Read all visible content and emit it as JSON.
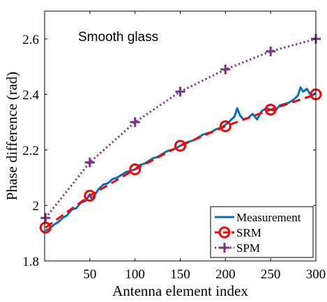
{
  "chart_data": {
    "type": "line",
    "annotation": "Smooth glass",
    "title": "",
    "xlabel": "Antenna element index",
    "ylabel": "Phase difference (rad)",
    "xlim": [
      0,
      300
    ],
    "ylim": [
      1.8,
      2.7
    ],
    "x_ticks": [
      50,
      100,
      150,
      200,
      250,
      300
    ],
    "y_ticks": [
      1.8,
      2,
      2.2,
      2.4,
      2.6
    ],
    "y_tick_labels": [
      "1.8",
      "2",
      "2.2",
      "2.4",
      "2.6"
    ],
    "grid": false,
    "legend_position": "bottom-right",
    "series": [
      {
        "name": "Measurement",
        "color": "#0072BD",
        "style": "solid",
        "x": [
          1,
          5,
          10,
          15,
          20,
          25,
          30,
          35,
          40,
          45,
          50,
          52,
          55,
          57,
          60,
          65,
          70,
          75,
          80,
          85,
          90,
          95,
          100,
          105,
          110,
          115,
          120,
          125,
          130,
          135,
          140,
          145,
          150,
          155,
          160,
          165,
          170,
          175,
          180,
          185,
          190,
          195,
          200,
          205,
          210,
          213,
          216,
          220,
          225,
          230,
          235,
          240,
          245,
          250,
          255,
          260,
          265,
          270,
          275,
          280,
          283,
          286,
          290,
          295,
          300
        ],
        "values": [
          1.91,
          1.915,
          1.93,
          1.94,
          1.955,
          1.965,
          1.985,
          1.99,
          2.01,
          2.015,
          2.04,
          2.025,
          2.035,
          2.045,
          2.06,
          2.075,
          2.08,
          2.095,
          2.1,
          2.11,
          2.12,
          2.125,
          2.13,
          2.145,
          2.15,
          2.16,
          2.17,
          2.175,
          2.185,
          2.195,
          2.2,
          2.205,
          2.215,
          2.225,
          2.23,
          2.235,
          2.245,
          2.255,
          2.26,
          2.265,
          2.275,
          2.28,
          2.29,
          2.305,
          2.32,
          2.35,
          2.325,
          2.31,
          2.315,
          2.33,
          2.31,
          2.34,
          2.35,
          2.345,
          2.34,
          2.36,
          2.365,
          2.37,
          2.38,
          2.395,
          2.425,
          2.41,
          2.42,
          2.395,
          2.405
        ]
      },
      {
        "name": "SRM",
        "color": "#FF0000",
        "style": "dashed",
        "marker": "circle",
        "x": [
          1,
          50,
          100,
          150,
          200,
          250,
          300
        ],
        "values": [
          1.92,
          2.035,
          2.13,
          2.215,
          2.285,
          2.345,
          2.4
        ]
      },
      {
        "name": "SPM",
        "color": "#7E2F8E",
        "style": "dotted",
        "marker": "plus",
        "x": [
          1,
          50,
          100,
          150,
          200,
          250,
          300
        ],
        "values": [
          1.955,
          2.155,
          2.3,
          2.41,
          2.49,
          2.555,
          2.6
        ]
      }
    ]
  }
}
